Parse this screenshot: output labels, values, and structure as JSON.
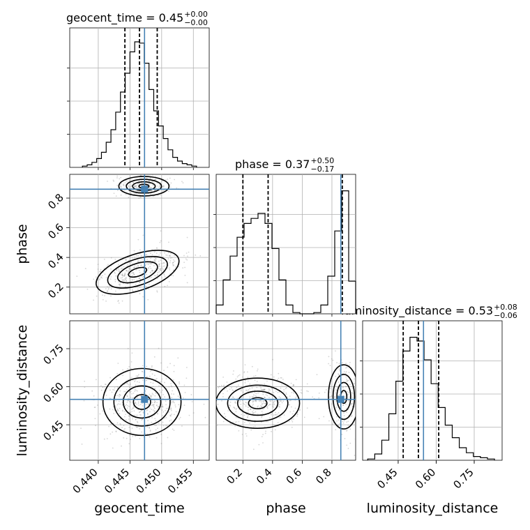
{
  "chart_data": {
    "type": "corner",
    "parameters": [
      "geocent_time",
      "phase",
      "luminosity_distance"
    ],
    "axis_labels": [
      "geocent_time",
      "phase",
      "luminosity_distance"
    ],
    "ranges": {
      "geocent_time": [
        0.4355,
        0.4575
      ],
      "phase": [
        0.02,
        0.96
      ],
      "luminosity_distance": [
        0.31,
        0.86
      ]
    },
    "ticks": {
      "geocent_time": [
        0.44,
        0.445,
        0.45,
        0.455
      ],
      "geocent_time_labels": [
        "0.440",
        "0.445",
        "0.450",
        "0.455"
      ],
      "phase": [
        0.2,
        0.4,
        0.6,
        0.8
      ],
      "phase_labels": [
        "0.2",
        "0.4",
        "0.6",
        "0.8"
      ],
      "luminosity_distance": [
        0.45,
        0.6,
        0.75
      ],
      "luminosity_distance_labels": [
        "0.45",
        "0.60",
        "0.75"
      ]
    },
    "titles": [
      {
        "param": "geocent_time",
        "name": "geocent_time",
        "median": "0.45",
        "plus": "+0.00",
        "minus": "−0.00"
      },
      {
        "param": "phase",
        "name": "phase",
        "median": "0.37",
        "plus": "+0.50",
        "minus": "−0.17"
      },
      {
        "param": "luminosity_distance",
        "name": "luminosity_distance",
        "median": "0.53",
        "plus": "+0.08",
        "minus": "−0.06"
      }
    ],
    "quantiles": {
      "geocent_time": [
        0.4442,
        0.4465,
        0.4493
      ],
      "phase": [
        0.2,
        0.37,
        0.87
      ],
      "luminosity_distance": [
        0.47,
        0.53,
        0.61
      ]
    },
    "truths": {
      "geocent_time": 0.4473,
      "phase": 0.86,
      "luminosity_distance": 0.55
    },
    "histograms": {
      "geocent_time": [
        0.01,
        0.02,
        0.04,
        0.07,
        0.12,
        0.2,
        0.3,
        0.44,
        0.6,
        0.75,
        0.92,
        1.0,
        0.99,
        0.83,
        0.62,
        0.45,
        0.33,
        0.23,
        0.14,
        0.08,
        0.05,
        0.03,
        0.02,
        0.01
      ],
      "phase": [
        0.07,
        0.27,
        0.46,
        0.61,
        0.72,
        0.76,
        0.8,
        0.72,
        0.52,
        0.27,
        0.07,
        0.01,
        0.0,
        0.0,
        0.01,
        0.07,
        0.3,
        0.66,
        0.98,
        0.26
      ],
      "luminosity_distance": [
        0.01,
        0.05,
        0.16,
        0.37,
        0.63,
        0.87,
        0.98,
        0.95,
        0.8,
        0.61,
        0.42,
        0.28,
        0.18,
        0.1,
        0.06,
        0.03,
        0.02,
        0.01
      ]
    },
    "grid": true,
    "colors": {
      "truth": "#4682b4",
      "contour": "#000000",
      "scatter": "#888888"
    }
  }
}
